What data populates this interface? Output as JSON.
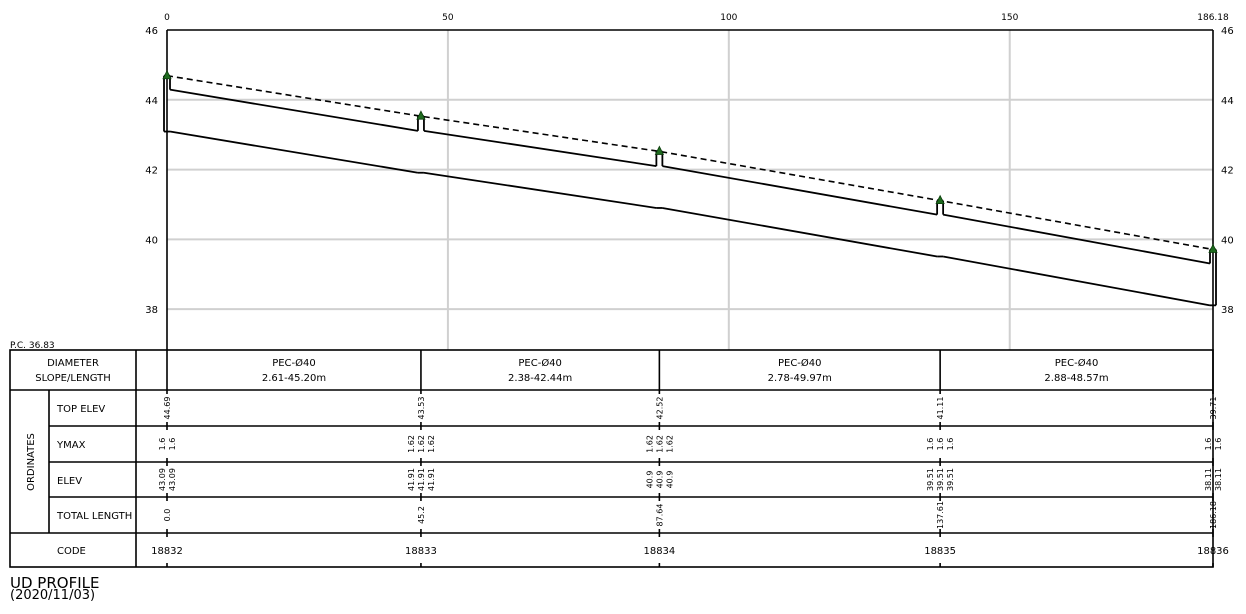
{
  "chart_data": {
    "type": "line",
    "x_ticks": [
      0,
      50,
      100,
      150,
      186.18
    ],
    "y_ticks": [
      38,
      40,
      42,
      44,
      46
    ],
    "xlim": [
      0,
      186.18
    ],
    "ylim": [
      36.83,
      46
    ],
    "grid": true,
    "pc_label": "P.C. 36.83",
    "stations": [
      0.0,
      45.2,
      87.64,
      137.61,
      186.18
    ],
    "top_elev": [
      44.69,
      43.53,
      42.52,
      41.11,
      39.71
    ],
    "ground_line": {
      "x": [
        0.0,
        45.2,
        87.64,
        137.61,
        186.18
      ],
      "y": [
        44.69,
        43.53,
        42.52,
        41.11,
        39.71
      ]
    },
    "pipe_invert": [
      {
        "start": 43.09,
        "end": 41.91
      },
      {
        "start": 41.91,
        "end": 40.9
      },
      {
        "start": 40.9,
        "end": 39.51
      },
      {
        "start": 39.51,
        "end": 38.11
      }
    ],
    "diameter_d": 1.2
  },
  "table": {
    "header_diameter": "DIAMETER",
    "header_slope": "SLOPE/LENGTH",
    "group_label": "ORDINATES",
    "row_labels": [
      "TOP ELEV",
      "YMAX",
      "ELEV",
      "TOTAL LENGTH"
    ],
    "code_label": "CODE",
    "segments": [
      {
        "diameter": "PEC-Ø40",
        "slope_length": "2.61-45.20m"
      },
      {
        "diameter": "PEC-Ø40",
        "slope_length": "2.38-42.44m"
      },
      {
        "diameter": "PEC-Ø40",
        "slope_length": "2.78-49.97m"
      },
      {
        "diameter": "PEC-Ø40",
        "slope_length": "2.88-48.57m"
      }
    ],
    "nodes": [
      {
        "code": "18832",
        "top": [
          "44.69"
        ],
        "ymax": [
          "1.6",
          "1.6"
        ],
        "elev": [
          "43.09",
          "43.09"
        ],
        "total": "0.0"
      },
      {
        "code": "18833",
        "top": [
          "43.53"
        ],
        "ymax": [
          "1.62",
          "1.62",
          "1.62"
        ],
        "elev": [
          "41.91",
          "41.91",
          "41.91"
        ],
        "total": "45.2"
      },
      {
        "code": "18834",
        "top": [
          "42.52"
        ],
        "ymax": [
          "1.62",
          "1.62",
          "1.62"
        ],
        "elev": [
          "40.9",
          "40.9",
          "40.9"
        ],
        "total": "87.64"
      },
      {
        "code": "18835",
        "top": [
          "41.11"
        ],
        "ymax": [
          "1.6",
          "1.6",
          "1.6"
        ],
        "elev": [
          "39.51",
          "39.51",
          "39.51"
        ],
        "total": "137.61"
      },
      {
        "code": "18836",
        "top": [
          "39.71"
        ],
        "ymax": [
          "1.6",
          "1.6"
        ],
        "elev": [
          "38.11",
          "38.11"
        ],
        "total": "186.18"
      }
    ]
  },
  "footer": {
    "title": "UD PROFILE",
    "date": "(2020/11/03)"
  }
}
